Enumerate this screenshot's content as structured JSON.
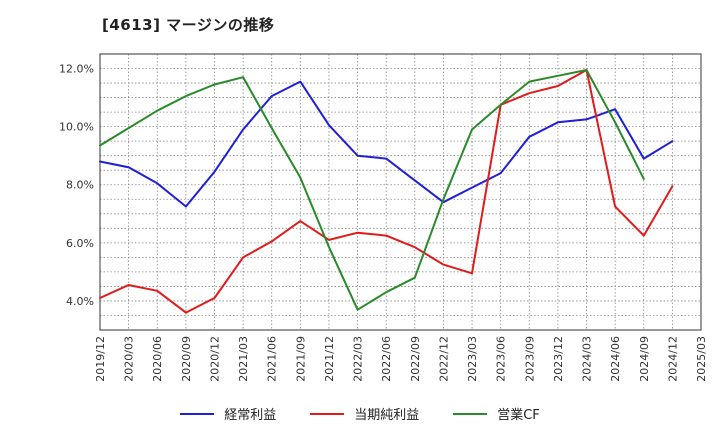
{
  "chart_data": {
    "type": "line",
    "title": "[4613]  マージンの推移",
    "xlabel": "",
    "ylabel": "",
    "ylim": [
      3.0,
      12.5
    ],
    "yticks": [
      4.0,
      6.0,
      8.0,
      10.0,
      12.0
    ],
    "ytick_labels": [
      "4.0%",
      "6.0%",
      "8.0%",
      "10.0%",
      "12.0%"
    ],
    "categories": [
      "2019/12",
      "2020/03",
      "2020/06",
      "2020/09",
      "2020/12",
      "2021/03",
      "2021/06",
      "2021/09",
      "2021/12",
      "2022/03",
      "2022/06",
      "2022/09",
      "2022/12",
      "2023/03",
      "2023/06",
      "2023/09",
      "2023/12",
      "2024/03",
      "2024/06",
      "2024/09",
      "2024/12",
      "2025/03"
    ],
    "grid": true,
    "legend_position": "bottom",
    "series": [
      {
        "name": "経常利益",
        "color": "#1f1fd6",
        "values": [
          8.8,
          8.6,
          8.05,
          7.25,
          8.45,
          9.9,
          11.05,
          11.55,
          10.05,
          9.0,
          8.9,
          8.15,
          7.4,
          7.9,
          8.4,
          9.65,
          10.15,
          10.25,
          10.6,
          8.9,
          9.5,
          null
        ]
      },
      {
        "name": "当期純利益",
        "color": "#e01b1b",
        "values": [
          4.1,
          4.55,
          4.35,
          3.6,
          4.1,
          5.5,
          6.05,
          6.75,
          6.1,
          6.35,
          6.25,
          5.85,
          5.25,
          4.95,
          10.75,
          11.15,
          11.4,
          11.95,
          7.25,
          6.25,
          7.95,
          null
        ]
      },
      {
        "name": "営業CF",
        "color": "#2a8a2a",
        "values": [
          9.35,
          9.95,
          10.55,
          11.05,
          11.45,
          11.7,
          9.95,
          8.25,
          5.85,
          3.7,
          4.3,
          4.8,
          7.5,
          9.9,
          10.75,
          11.55,
          11.75,
          11.95,
          10.15,
          8.2,
          null,
          null
        ]
      }
    ]
  }
}
